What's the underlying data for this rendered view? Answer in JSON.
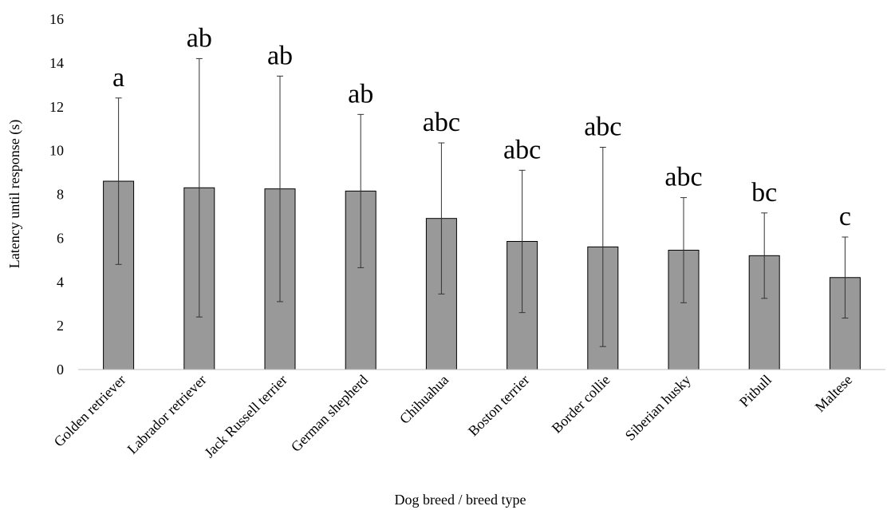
{
  "chart_data": {
    "type": "bar",
    "title": "",
    "xlabel": "Dog breed / breed type",
    "ylabel": "Latency until response (s)",
    "ylim": [
      0,
      16
    ],
    "yticks": [
      "0",
      "2",
      "4",
      "6",
      "8",
      "10",
      "12",
      "14",
      "16"
    ],
    "grid": false,
    "categories": [
      "Golden retriever",
      "Labrador retriever",
      "Jack Russell terrier",
      "German shepherd",
      "Chihuahua",
      "Boston terrier",
      "Border collie",
      "Siberian husky",
      "Pitbull",
      "Maltese"
    ],
    "values": [
      8.6,
      8.3,
      8.25,
      8.15,
      6.9,
      5.85,
      5.6,
      5.45,
      5.2,
      4.2
    ],
    "errors": [
      3.8,
      5.9,
      5.15,
      3.5,
      3.45,
      3.25,
      4.55,
      2.4,
      1.95,
      1.85
    ],
    "significance_labels": [
      "a",
      "ab",
      "ab",
      "ab",
      "abc",
      "abc",
      "abc",
      "abc",
      "bc",
      "c"
    ],
    "colors": {
      "bar": "#999999",
      "bar_edge": "#000000",
      "error_bar": "#333333",
      "axis": "#bfbfbf"
    }
  }
}
